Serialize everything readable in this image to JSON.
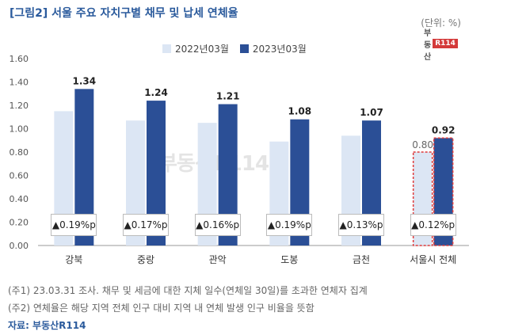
{
  "title": "[그림2] 서울 주요 자치구별 채무 및 납세 연체율",
  "unit": "(단위: %)",
  "logo": {
    "text": "부동산",
    "badge": "R114"
  },
  "watermark": "부동산R114",
  "notes": [
    "(주1) 23.03.31 조사. 채무 및 세금에 대한 지체 일수(연체일 30일)를 초과한 연체자 집계",
    "(주2) 연체율은 해당 지역 전체 인구 대비 지역 내 연체 발생 인구 비율을 뜻함"
  ],
  "source": "자료: 부동산R114",
  "colors": {
    "series1": "#dce6f4",
    "series2": "#2b4f96",
    "highlight_border": "#e03c3c",
    "title": "#2a5a9c"
  },
  "chart_data": {
    "type": "bar",
    "title": "[그림2] 서울 주요 자치구별 채무 및 납세 연체율",
    "ylabel": "%",
    "ylim": [
      0,
      1.6
    ],
    "yticks": [
      "0.00",
      "0.20",
      "0.40",
      "0.60",
      "0.80",
      "1.00",
      "1.20",
      "1.40",
      "1.60"
    ],
    "categories": [
      "강북",
      "중랑",
      "관악",
      "도봉",
      "금천",
      "서울시 전체"
    ],
    "series": [
      {
        "name": "2022년03월",
        "values": [
          1.15,
          1.07,
          1.05,
          0.89,
          0.94,
          0.8
        ],
        "labels": [
          "",
          "",
          "",
          "",
          "",
          "0.80"
        ]
      },
      {
        "name": "2023년03월",
        "values": [
          1.34,
          1.24,
          1.21,
          1.08,
          1.07,
          0.92
        ],
        "labels": [
          "1.34",
          "1.24",
          "1.21",
          "1.08",
          "1.07",
          "0.92"
        ]
      }
    ],
    "changes": [
      "▲0.19%p",
      "▲0.17%p",
      "▲0.16%p",
      "▲0.19%p",
      "▲0.13%p",
      "▲0.12%p"
    ],
    "highlight_category": "서울시 전체"
  }
}
